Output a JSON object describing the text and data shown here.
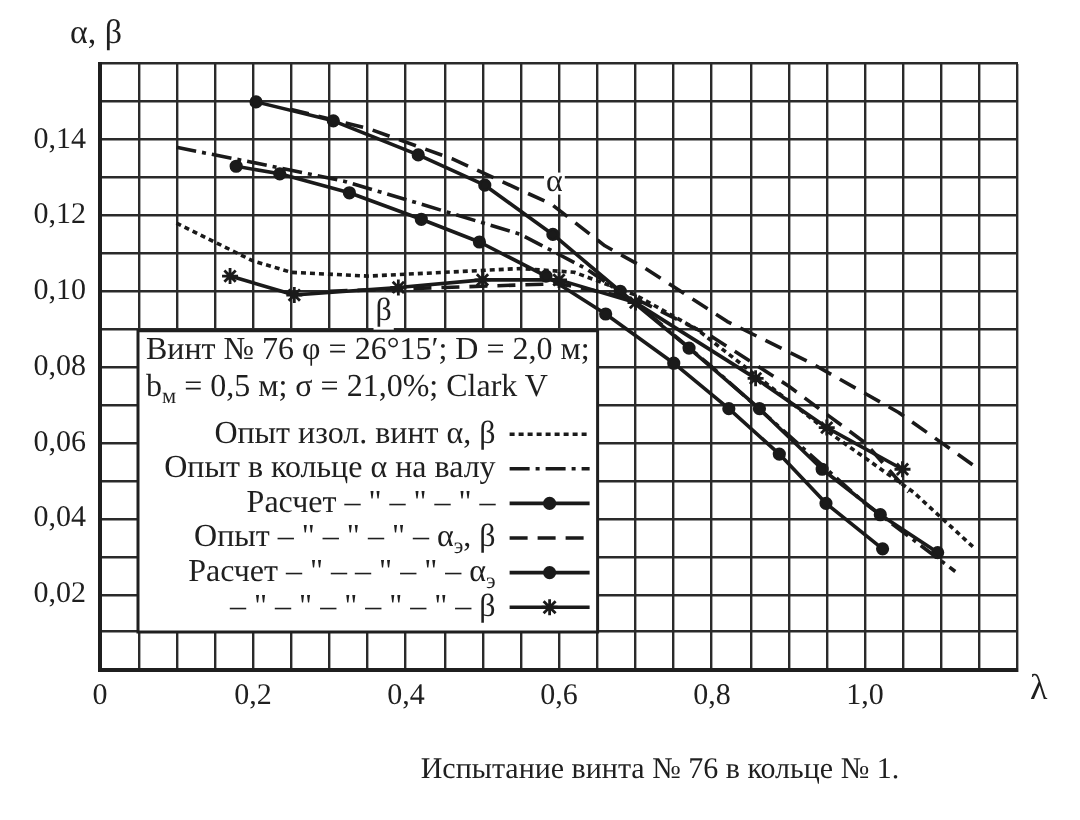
{
  "chart_data": {
    "type": "line",
    "title": "Испытание винта № 76 в кольце № 1.",
    "xlabel": "λ",
    "ylabel": "α, β",
    "legend_title": "Винт № 76 φ = 26°15′; D = 2,0 м;\nb$_{м}$ = 0,5 м; σ = 21,0%; Clark V",
    "annotations": [
      "α",
      "β"
    ],
    "xlim": [
      0,
      1.2
    ],
    "ylim": [
      0,
      0.16
    ],
    "xticks": [
      0,
      {
        "value": 0.05,
        "label": null
      },
      {
        "value": 0.1,
        "label": null
      },
      {
        "value": 0.15,
        "label": null
      },
      {
        "value": 0.2,
        "label": "0,2"
      },
      {
        "value": 0.25,
        "label": null
      },
      {
        "value": 0.3,
        "label": null
      },
      {
        "value": 0.35,
        "label": null
      },
      {
        "value": 0.4,
        "label": "0,4"
      },
      {
        "value": 0.45,
        "label": null
      },
      {
        "value": 0.5,
        "label": null
      },
      {
        "value": 0.55,
        "label": null
      },
      {
        "value": 0.6,
        "label": "0,6"
      },
      {
        "value": 0.65,
        "label": null
      },
      {
        "value": 0.7,
        "label": null
      },
      {
        "value": 0.75,
        "label": null
      },
      {
        "value": 0.8,
        "label": "0,8"
      },
      {
        "value": 0.85,
        "label": null
      },
      {
        "value": 0.9,
        "label": null
      },
      {
        "value": 0.95,
        "label": null
      },
      {
        "value": 1.0,
        "label": "1,0"
      },
      {
        "value": 1.05,
        "label": null
      },
      {
        "value": 1.1,
        "label": null
      },
      {
        "value": 1.15,
        "label": null
      },
      {
        "value": 1.2,
        "label": null
      }
    ],
    "yticks": [
      {
        "value": 0,
        "label": null
      },
      {
        "value": 0.01,
        "label": null
      },
      {
        "value": 0.02,
        "label": "0,02"
      },
      {
        "value": 0.03,
        "label": null
      },
      {
        "value": 0.04,
        "label": "0,04"
      },
      {
        "value": 0.05,
        "label": null
      },
      {
        "value": 0.06,
        "label": "0,06"
      },
      {
        "value": 0.07,
        "label": null
      },
      {
        "value": 0.08,
        "label": "0,08"
      },
      {
        "value": 0.09,
        "label": null
      },
      {
        "value": 0.1,
        "label": "0,10"
      },
      {
        "value": 0.11,
        "label": null
      },
      {
        "value": 0.12,
        "label": "0,12"
      },
      {
        "value": 0.13,
        "label": null
      },
      {
        "value": 0.14,
        "label": "0,14"
      },
      {
        "value": 0.15,
        "label": null
      },
      {
        "value": 0.16,
        "label": null
      }
    ],
    "grid": true,
    "legend": "bottom left",
    "series": [
      {
        "name": "Опыт изол. винт α, β",
        "color": "#1a1a1a",
        "line_style": "dotted",
        "marker": "none",
        "x": [
          0.1,
          0.15,
          0.2,
          0.25,
          0.35,
          0.45,
          0.55,
          0.62,
          0.7,
          0.78,
          0.856,
          0.958,
          1.063,
          1.144
        ],
        "values": [
          0.118,
          0.113,
          0.108,
          0.105,
          0.104,
          0.105,
          0.106,
          0.105,
          0.099,
          0.09,
          0.078,
          0.062,
          0.047,
          0.032
        ]
      },
      {
        "name": "Опыт в кольце α на валу",
        "color": "#1a1a1a",
        "line_style": "dashdot",
        "marker": "none",
        "x": [
          0.1,
          0.2,
          0.32,
          0.42,
          0.55,
          0.635,
          0.7,
          0.8,
          0.9,
          1.0,
          1.118
        ],
        "values": [
          0.138,
          0.134,
          0.129,
          0.123,
          0.115,
          0.106,
          0.097,
          0.08,
          0.062,
          0.044,
          0.026
        ]
      },
      {
        "name": "Расчет – \" – \" – \" –",
        "color": "#1a1a1a",
        "line_style": "solid",
        "marker": "circle",
        "x": [
          0.178,
          0.235,
          0.326,
          0.42,
          0.496,
          0.583,
          0.661,
          0.75,
          0.822,
          0.888,
          0.949,
          1.023
        ],
        "values": [
          0.133,
          0.131,
          0.126,
          0.119,
          0.113,
          0.104,
          0.094,
          0.081,
          0.069,
          0.057,
          0.044,
          0.032
        ]
      },
      {
        "name": "Опыт – \" – \" – \" – α$_{э}$, β",
        "color": "#1a1a1a",
        "line_style": "dashed",
        "marker": "none",
        "x": [
          0.25,
          0.35,
          0.46,
          0.59,
          0.66,
          0.713,
          0.82,
          0.93,
          1.044,
          1.149
        ],
        "values": [
          0.148,
          0.143,
          0.135,
          0.123,
          0.112,
          0.106,
          0.092,
          0.081,
          0.068,
          0.053
        ]
      },
      {
        "name": "Расчет – \" – – \" – \" – α$_{э}$",
        "color": "#1a1a1a",
        "line_style": "solid",
        "marker": "circle",
        "x": [
          0.204,
          0.305,
          0.416,
          0.503,
          0.592,
          0.68,
          0.77,
          0.862,
          0.944,
          1.02,
          1.095
        ],
        "values": [
          0.15,
          0.145,
          0.136,
          0.128,
          0.115,
          0.1,
          0.085,
          0.069,
          0.053,
          0.041,
          0.031
        ]
      },
      {
        "name": "– \" – \" – \" – \" – \" – β",
        "color": "#1a1a1a",
        "line_style": "solid",
        "marker": "cross",
        "x": [
          0.17,
          0.254,
          0.39,
          0.5,
          0.6,
          0.7,
          0.857,
          0.95,
          1.049
        ],
        "values": [
          0.104,
          0.099,
          0.101,
          0.103,
          0.103,
          0.097,
          0.077,
          0.064,
          0.053
        ]
      },
      {
        "color": "#1a1a1a",
        "line_style": "dashed",
        "marker": "none",
        "x": [
          0.3,
          0.45,
          0.6,
          0.7,
          0.8,
          0.9,
          1.0,
          1.057
        ],
        "values": [
          0.1,
          0.101,
          0.102,
          0.098,
          0.088,
          0.075,
          0.06,
          0.047
        ]
      }
    ]
  }
}
